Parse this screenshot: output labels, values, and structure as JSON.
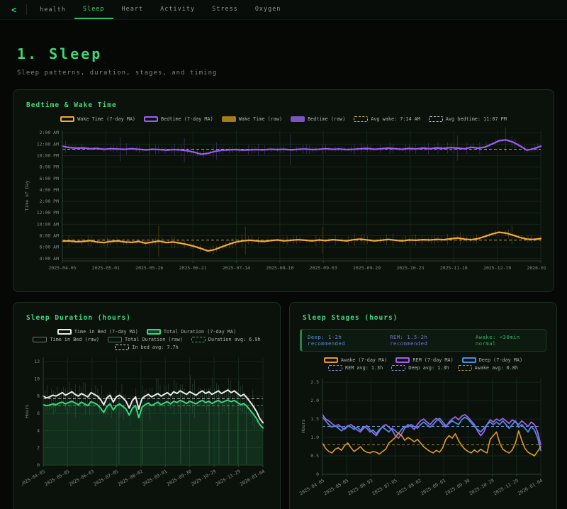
{
  "nav": {
    "back_label": "<",
    "app_label": "health",
    "tabs": [
      {
        "label": "Sleep",
        "active": true
      },
      {
        "label": "Heart",
        "active": false
      },
      {
        "label": "Activity",
        "active": false
      },
      {
        "label": "Stress",
        "active": false
      },
      {
        "label": "Oxygen",
        "active": false
      }
    ]
  },
  "page": {
    "title": "1. Sleep",
    "subtitle": "Sleep patterns, duration, stages, and timing"
  },
  "panels": {
    "bedtime": {
      "title": "Bedtime & Wake Time",
      "legend_rows": [
        [
          {
            "sw": "outline",
            "c": "#f5a832",
            "label": "Wake Time (7-day MA)"
          },
          {
            "sw": "outline",
            "c": "#9f5cf2",
            "label": "Bedtime (7-day MA)"
          },
          {
            "sw": "fill",
            "c": "#a57c16",
            "label": "Wake Time (raw)"
          },
          {
            "sw": "fill",
            "c": "#7a55c2",
            "label": "Bedtime (raw)"
          },
          {
            "sw": "dash",
            "c": "#d8b05a",
            "label": "Avg wake: 7:14 AM"
          },
          {
            "sw": "dash",
            "c": "#b9c2dd",
            "label": "Avg bedtime: 11:07 PM"
          }
        ]
      ]
    },
    "duration": {
      "title": "Sleep Duration (hours)",
      "legend_rows": [
        [
          {
            "sw": "outline",
            "c": "#ececec",
            "label": "Time in Bed (7-day MA)"
          },
          {
            "sw": "fillout",
            "c": "#35d97c",
            "label": "Total Duration (7-day MA)"
          }
        ],
        [
          {
            "sw": "thin",
            "c": "#6e786e",
            "label": "Time in Bed (raw)"
          },
          {
            "sw": "thin",
            "c": "#3f7a55",
            "label": "Total Duration (raw)"
          },
          {
            "sw": "dash",
            "c": "#3fae6a",
            "label": "Duration avg: 6.9h"
          }
        ],
        [
          {
            "sw": "dash",
            "c": "#d8d8d8",
            "label": "In bed avg: 7.7h"
          }
        ]
      ]
    },
    "stages": {
      "title": "Sleep Stages (hours)",
      "note": [
        {
          "text": "Deep: 1-2h recommended",
          "color": "#5b8dd9"
        },
        {
          "text": "REM: 1.5-2h recommended",
          "color": "#7d6fd9"
        },
        {
          "text": "Awake: <30min normal",
          "color": "#3fae6a"
        }
      ],
      "legend_rows": [
        [
          {
            "sw": "outline",
            "c": "#e09a28",
            "label": "Awake (7-day MA)"
          },
          {
            "sw": "outline",
            "c": "#a45df0",
            "label": "REM (7-day MA)"
          },
          {
            "sw": "outline",
            "c": "#4a8fe0",
            "label": "Deep (7-day MA)"
          }
        ],
        [
          {
            "sw": "dash",
            "c": "#9d87d8",
            "label": "REM avg: 1.3h"
          },
          {
            "sw": "dash",
            "c": "#6f9cd0",
            "label": "Deep avg: 1.3h"
          },
          {
            "sw": "dash",
            "c": "#b89440",
            "label": "Awake avg: 0.8h"
          }
        ]
      ]
    }
  },
  "chart_data": [
    {
      "type": "line",
      "title": "Bedtime & Wake Time",
      "ylabel": "Time of Day",
      "ylim": [
        3.6,
        26.4
      ],
      "yticks": [
        {
          "v": 26,
          "label": "2:00 AM"
        },
        {
          "v": 24,
          "label": "12:00 AM"
        },
        {
          "v": 22,
          "label": "10:00 PM"
        },
        {
          "v": 20,
          "label": "8:00 PM"
        },
        {
          "v": 18,
          "label": "6:00 PM"
        },
        {
          "v": 16,
          "label": "4:00 PM"
        },
        {
          "v": 14,
          "label": "2:00 PM"
        },
        {
          "v": 12,
          "label": "12:00 PM"
        },
        {
          "v": 10,
          "label": "10:00 AM"
        },
        {
          "v": 8,
          "label": "8:00 AM"
        },
        {
          "v": 6,
          "label": "6:00 AM"
        },
        {
          "v": 4,
          "label": "4:00 AM"
        }
      ],
      "xticklabels": [
        "2025-04-05",
        "2025-05-01",
        "2025-05-26",
        "2025-06-21",
        "2025-07-14",
        "2025-08-10",
        "2025-09-03",
        "2025-09-29",
        "2025-10-23",
        "2025-11-18",
        "2025-12-19",
        "2026-01-28"
      ],
      "avg_lines": [
        {
          "value": 23.12,
          "color": "#b9c2dd",
          "label": "Avg bedtime: 11:07 PM"
        },
        {
          "value": 7.23,
          "color": "#d8b05a",
          "label": "Avg wake: 7:14 AM"
        }
      ],
      "raw_seed": 7,
      "series": [
        {
          "name": "Bedtime (7-day MA)",
          "color": "#9f5cf2",
          "width": 2.2,
          "raw_color": "#6b4ab2",
          "raw_jitter": 0.55,
          "values": [
            23.65,
            23.4,
            23.3,
            23.35,
            23.2,
            23.25,
            23.1,
            23.2,
            23.15,
            23.1,
            23.2,
            23.1,
            23.0,
            23.1,
            23.05,
            22.95,
            23.05,
            23.0,
            22.85,
            22.6,
            22.25,
            22.4,
            22.75,
            22.95,
            23.0,
            23.05,
            22.95,
            23.0,
            23.05,
            23.0,
            23.1,
            23.05,
            23.1,
            23.0,
            23.1,
            23.15,
            23.05,
            23.1,
            23.2,
            23.1,
            23.15,
            23.05,
            23.1,
            23.2,
            23.25,
            23.1,
            23.2,
            23.3,
            23.2,
            23.1,
            23.25,
            23.15,
            23.3,
            23.2,
            23.35,
            23.25,
            23.4,
            23.3,
            23.2,
            23.45,
            23.3,
            23.5,
            24.05,
            24.6,
            24.75,
            24.35,
            23.7,
            22.95,
            23.2,
            23.65
          ]
        },
        {
          "name": "Wake Time (7-day MA)",
          "color": "#f5a832",
          "width": 2.2,
          "raw_color": "#8f6c12",
          "raw_jitter": 0.55,
          "values": [
            7.05,
            7.1,
            6.95,
            7.0,
            7.15,
            6.9,
            6.8,
            7.0,
            7.1,
            6.9,
            6.85,
            7.0,
            6.7,
            6.9,
            7.05,
            6.8,
            6.9,
            6.7,
            6.45,
            6.15,
            5.75,
            5.35,
            5.6,
            6.05,
            6.5,
            6.9,
            7.1,
            7.2,
            7.1,
            7.0,
            7.15,
            7.25,
            7.1,
            7.2,
            7.3,
            7.2,
            7.1,
            7.25,
            7.15,
            7.3,
            7.2,
            7.1,
            7.3,
            7.4,
            7.25,
            7.1,
            7.2,
            7.35,
            7.2,
            7.1,
            7.25,
            7.2,
            7.3,
            7.25,
            7.35,
            7.3,
            7.45,
            7.6,
            7.4,
            7.3,
            7.5,
            7.9,
            8.3,
            8.6,
            8.45,
            8.1,
            7.7,
            7.4,
            7.35,
            7.5
          ]
        }
      ]
    },
    {
      "type": "line",
      "title": "Sleep Duration (hours)",
      "ylabel": "Hours",
      "ylim": [
        0,
        12.5
      ],
      "yticks": [
        {
          "v": 0,
          "label": "0"
        },
        {
          "v": 2,
          "label": "2"
        },
        {
          "v": 4,
          "label": "4"
        },
        {
          "v": 6,
          "label": "6"
        },
        {
          "v": 8,
          "label": "8"
        },
        {
          "v": 10,
          "label": "10"
        },
        {
          "v": 12,
          "label": "12"
        }
      ],
      "xticklabels": [
        "2025-04-05",
        "2025-05-05",
        "2025-06-03",
        "2025-07-05",
        "2025-08-02",
        "2025-09-01",
        "2025-09-30",
        "2025-10-29",
        "2025-11-29",
        "2026-01-04"
      ],
      "avg_lines": [
        {
          "value": 7.7,
          "color": "#d8d8d8",
          "label": "In bed avg: 7.7h"
        },
        {
          "value": 6.9,
          "color": "#3fae6a",
          "label": "Duration avg: 6.9h"
        }
      ],
      "raw_seed": 11,
      "raw_band": {
        "jitter": 1.15,
        "color": "#51705a"
      },
      "zero_drops": [
        0.345,
        0.45,
        0.625,
        0.755,
        0.8,
        0.845,
        0.885,
        0.925
      ],
      "series": [
        {
          "name": "Time in Bed (7-day MA)",
          "color": "#ececec",
          "width": 2,
          "values": [
            8.0,
            7.8,
            7.9,
            8.1,
            8.0,
            8.2,
            8.4,
            8.1,
            8.3,
            8.5,
            8.2,
            8.0,
            8.3,
            8.1,
            7.9,
            8.4,
            8.2,
            8.0,
            7.6,
            7.0,
            7.8,
            8.1,
            7.3,
            7.9,
            8.1,
            7.8,
            7.4,
            6.6,
            7.5,
            7.9,
            6.5,
            7.7,
            8.0,
            8.2,
            7.9,
            8.1,
            8.3,
            8.0,
            8.2,
            8.4,
            8.1,
            8.5,
            8.3,
            8.6,
            8.4,
            8.2,
            8.5,
            8.3,
            8.1,
            8.4,
            8.6,
            8.3,
            8.5,
            8.2,
            8.4,
            8.6,
            8.3,
            8.5,
            8.7,
            8.4,
            8.6,
            8.3,
            8.0,
            8.2,
            7.8,
            7.3,
            6.8,
            6.2,
            5.4,
            4.9
          ]
        },
        {
          "name": "Total Duration (7-day MA)",
          "color": "#35d97c",
          "width": 2,
          "fill": "rgba(53,217,124,0.15)",
          "values": [
            7.0,
            6.9,
            6.95,
            7.1,
            7.0,
            7.2,
            7.3,
            7.1,
            7.25,
            7.4,
            7.2,
            7.0,
            7.3,
            7.1,
            6.9,
            7.35,
            7.2,
            7.0,
            6.6,
            6.1,
            6.8,
            7.1,
            6.4,
            6.9,
            7.1,
            6.8,
            6.5,
            5.8,
            6.6,
            6.9,
            5.5,
            6.7,
            7.0,
            7.2,
            6.9,
            7.1,
            7.3,
            7.0,
            7.2,
            7.35,
            7.1,
            7.4,
            7.25,
            7.5,
            7.35,
            7.15,
            7.4,
            7.25,
            7.1,
            7.35,
            7.5,
            7.25,
            7.4,
            7.15,
            7.35,
            7.5,
            7.25,
            7.4,
            7.55,
            7.35,
            7.5,
            7.25,
            7.0,
            7.15,
            6.8,
            6.35,
            5.9,
            5.4,
            4.7,
            4.3
          ]
        }
      ]
    },
    {
      "type": "line",
      "title": "Sleep Stages (hours)",
      "ylabel": "Hours",
      "ylim": [
        0,
        2.62
      ],
      "yticks": [
        {
          "v": 0,
          "label": "0"
        },
        {
          "v": 0.5,
          "label": "0.5"
        },
        {
          "v": 1.0,
          "label": "1.0"
        },
        {
          "v": 1.5,
          "label": "1.5"
        },
        {
          "v": 2.0,
          "label": "2.0"
        },
        {
          "v": 2.5,
          "label": "2.5"
        }
      ],
      "xticklabels": [
        "2025-04-05",
        "2025-05-05",
        "2025-06-03",
        "2025-07-05",
        "2025-08-02",
        "2025-09-01",
        "2025-09-30",
        "2025-10-29",
        "2025-11-29",
        "2026-01-04"
      ],
      "avg_lines": [
        {
          "value": 1.3,
          "color": "#9d87d8",
          "label": "REM avg: 1.3h"
        },
        {
          "value": 1.3,
          "color": "#6f9cd0",
          "label": "Deep avg: 1.3h"
        },
        {
          "value": 0.8,
          "color": "#b89440",
          "label": "Awake avg: 0.8h"
        }
      ],
      "raw_seed": 3,
      "series": [
        {
          "name": "REM (7-day MA)",
          "color": "#a45df0",
          "width": 1.8,
          "values": [
            1.62,
            1.5,
            1.45,
            1.38,
            1.3,
            1.35,
            1.28,
            1.22,
            1.3,
            1.35,
            1.28,
            1.2,
            1.15,
            1.25,
            1.32,
            1.22,
            1.12,
            1.05,
            1.18,
            1.3,
            1.35,
            1.28,
            1.2,
            1.05,
            0.98,
            1.1,
            1.25,
            1.35,
            1.3,
            1.22,
            1.35,
            1.45,
            1.5,
            1.42,
            1.35,
            1.45,
            1.52,
            1.45,
            1.35,
            1.28,
            1.42,
            1.5,
            1.56,
            1.48,
            1.58,
            1.62,
            1.55,
            1.45,
            1.35,
            1.18,
            1.05,
            1.15,
            1.35,
            1.48,
            1.42,
            1.5,
            1.45,
            1.52,
            1.45,
            1.38,
            1.48,
            1.42,
            1.35,
            1.45,
            1.38,
            1.3,
            1.42,
            1.35,
            1.15,
            0.8
          ]
        },
        {
          "name": "Deep (7-day MA)",
          "color": "#4a8fe0",
          "width": 1.8,
          "values": [
            1.55,
            1.45,
            1.35,
            1.28,
            1.32,
            1.25,
            1.18,
            1.25,
            1.32,
            1.28,
            1.22,
            1.28,
            1.2,
            1.3,
            1.25,
            1.15,
            1.2,
            1.1,
            1.22,
            1.28,
            1.22,
            1.15,
            1.25,
            1.18,
            1.1,
            1.22,
            1.3,
            1.28,
            1.35,
            1.3,
            1.25,
            1.35,
            1.42,
            1.35,
            1.28,
            1.35,
            1.45,
            1.52,
            1.42,
            1.32,
            1.38,
            1.45,
            1.4,
            1.35,
            1.48,
            1.55,
            1.5,
            1.4,
            1.3,
            1.22,
            1.15,
            1.25,
            1.35,
            1.42,
            1.35,
            1.42,
            1.35,
            1.45,
            1.35,
            1.25,
            1.35,
            1.45,
            1.28,
            1.35,
            1.25,
            1.15,
            1.3,
            1.2,
            1.0,
            0.65
          ]
        },
        {
          "name": "Awake (7-day MA)",
          "color": "#e09a28",
          "width": 1.6,
          "values": [
            0.85,
            0.7,
            0.62,
            0.58,
            0.68,
            0.72,
            0.65,
            0.78,
            0.85,
            0.72,
            0.62,
            0.68,
            0.75,
            0.65,
            0.6,
            0.58,
            0.62,
            0.6,
            0.55,
            0.62,
            0.68,
            0.85,
            0.92,
            1.0,
            1.12,
            1.05,
            0.92,
            1.0,
            0.95,
            0.88,
            0.95,
            0.85,
            0.75,
            0.68,
            0.62,
            0.58,
            0.65,
            0.6,
            0.72,
            0.95,
            1.05,
            0.98,
            1.1,
            0.92,
            0.78,
            0.68,
            0.62,
            0.58,
            0.66,
            0.6,
            0.68,
            0.62,
            0.58,
            0.95,
            1.05,
            1.15,
            0.85,
            0.68,
            0.62,
            0.58,
            0.66,
            0.85,
            1.18,
            0.92,
            0.7,
            0.6,
            0.55,
            0.5,
            0.62,
            0.75
          ]
        }
      ]
    }
  ]
}
